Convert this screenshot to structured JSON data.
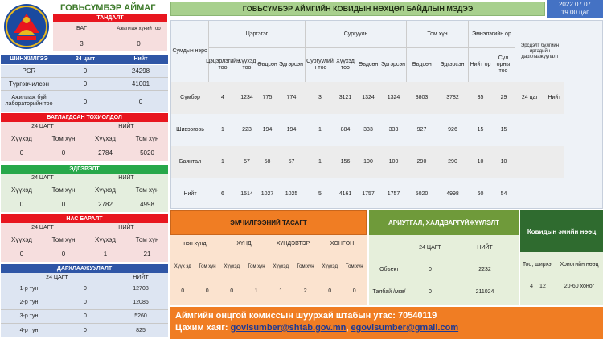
{
  "header": {
    "aimag": "ГОВЬСҮМБЭР АЙМАГ",
    "title": "ГОВЬСҮМБЭР АЙМГИЙН КОВИДЫН НӨХЦӨЛ БАЙДЛЫН МЭДЭЭ",
    "date": "2022.07.07",
    "time": "19.00 цаг"
  },
  "tandalt": {
    "title": "ТАНДАЛТ",
    "h1": "БАГ",
    "h2": "Ажиллаж хүний тоо",
    "v1": "3",
    "v2": "0"
  },
  "shinjilgee": {
    "title": "ШИНЖИЛГЭЭ",
    "col1": "24 цагт",
    "col2": "Нийт",
    "rows": [
      {
        "label": "PCR",
        "d24": "0",
        "total": "24298"
      },
      {
        "label": "Түргэвчилсэн",
        "d24": "0",
        "total": "41001"
      },
      {
        "label": "Ажиллаж буй лабораторийн тоо",
        "d24": "0",
        "total": "0"
      }
    ]
  },
  "batlagdsan": {
    "title": "БАТЛАГДСАН ТОХИОЛДОЛ",
    "g1": "24 ЦАГТ",
    "g2": "НИЙТ",
    "h": [
      "Хүүхэд",
      "Том хүн",
      "Хүүхэд",
      "Том хүн"
    ],
    "v": [
      "0",
      "0",
      "2784",
      "5020"
    ]
  },
  "edgerelt": {
    "title": "ЭДГЭРЭЛТ",
    "g1": "24 ЦАГТ",
    "g2": "НИЙТ",
    "h": [
      "Хүүхэд",
      "Том хүн",
      "Хүүхэд",
      "Том хүн"
    ],
    "v": [
      "0",
      "0",
      "2782",
      "4998"
    ]
  },
  "nas_baralt": {
    "title": "НАС БАРАЛТ",
    "g1": "24 ЦАГТ",
    "g2": "НИЙТ",
    "h": [
      "Хүүхэд",
      "Том хүн",
      "Хүүхэд",
      "Том хүн"
    ],
    "v": [
      "0",
      "0",
      "1",
      "21"
    ]
  },
  "darhlaa": {
    "title": "ДАРХЛААЖУУЛАЛТ",
    "col1": "24 ЦАГТ",
    "col2": "НИЙТ",
    "rows": [
      {
        "label": "1-р тун",
        "d24": "0",
        "total": "12708"
      },
      {
        "label": "2-р тун",
        "d24": "0",
        "total": "12086"
      },
      {
        "label": "3-р тун",
        "d24": "0",
        "total": "5260"
      },
      {
        "label": "4-р тун",
        "d24": "0",
        "total": "825"
      }
    ]
  },
  "main": {
    "col_place": "Сумдын нэрс",
    "g_patient": "Цэргэгэг",
    "g_school": "Сургууль",
    "g_adult": "Том хүн",
    "g_hosp": "Эмнэлэгийн ор",
    "g_vacc": "Эрсдэлт бүлгийн иргэдийн дархлаажуулалт",
    "sub": [
      "Цэцэрлэгийн тоо",
      "Хүүхэд тоо",
      "Өвдсөн",
      "Эдгэрсэн",
      "Сургуулий н тоо",
      "Хүүхэд тоо",
      "Өвдсөн",
      "Эдгэрсэн",
      "Өвдсөн",
      "Эдгэрсэн",
      "Нийт ор",
      "Сул орны тоо",
      "24 цаг",
      "Нийт"
    ],
    "rows": [
      {
        "name": "Сүмбэр",
        "vals": [
          "4",
          "1234",
          "775",
          "774",
          "3",
          "3121",
          "1324",
          "1324",
          "3803",
          "3782",
          "35",
          "29",
          "24 цаг",
          "Нийт"
        ]
      },
      {
        "name": "Шивээговь",
        "vals": [
          "1",
          "223",
          "194",
          "194",
          "1",
          "884",
          "333",
          "333",
          "927",
          "926",
          "15",
          "15",
          "",
          ""
        ]
      },
      {
        "name": "Баянтал",
        "vals": [
          "1",
          "57",
          "58",
          "57",
          "1",
          "156",
          "100",
          "100",
          "290",
          "290",
          "10",
          "10",
          "",
          ""
        ]
      },
      {
        "name": "Нийт",
        "vals": [
          "6",
          "1514",
          "1027",
          "1025",
          "5",
          "4161",
          "1757",
          "1757",
          "5020",
          "4998",
          "60",
          "54",
          "",
          ""
        ]
      }
    ]
  },
  "emchilgee": {
    "title": "ЭМЧИЛГЭЭНИЙ ТАСАГТ",
    "groups": [
      "нэн хүнд",
      "ХҮНД",
      "ХҮНДЭВТЭР",
      "ХӨНГӨН"
    ],
    "h": [
      "Хүүх эд",
      "Том хүн",
      "Хүүхэд",
      "Том хүн",
      "Хүүхэд",
      "Том хүн",
      "Хүүхэд",
      "Том хүн"
    ],
    "v": [
      "0",
      "0",
      "0",
      "1",
      "1",
      "2",
      "0",
      "0"
    ]
  },
  "ariutgal": {
    "title": "АРИУТГАЛ, ХАЛДВАРГҮЙЖҮҮЛЭЛТ",
    "col1": "24 ЦАГТ",
    "col2": "НИЙТ",
    "rows": [
      {
        "label": "Объект",
        "d24": "0",
        "total": "2232"
      },
      {
        "label": "Талбай /мкв/",
        "d24": "0",
        "total": "211024"
      }
    ]
  },
  "emiin_noots": {
    "title": "Ковидын эмийн нөөц",
    "h1": "Тоо, ширхэг",
    "h2": "Хоногийн нөөц",
    "v1a": "4",
    "v1b": "12",
    "v2": "20-60 хоног"
  },
  "footer": {
    "phone": "Аймгийн онцгой комиссын шуурхай штабын утас: 70540119",
    "mail_label": "Цахим хаяг:",
    "mail1": "govisumber@shtab.gov.mn",
    "sep": ",",
    "mail2": "egovisumber@gmail.com"
  },
  "colors": {
    "red": "#e8161f",
    "blue": "#2f56a6",
    "green": "#27a84a",
    "orange": "#f07d23",
    "olive": "#6f9a3a",
    "header_green": "#a8d08d"
  }
}
